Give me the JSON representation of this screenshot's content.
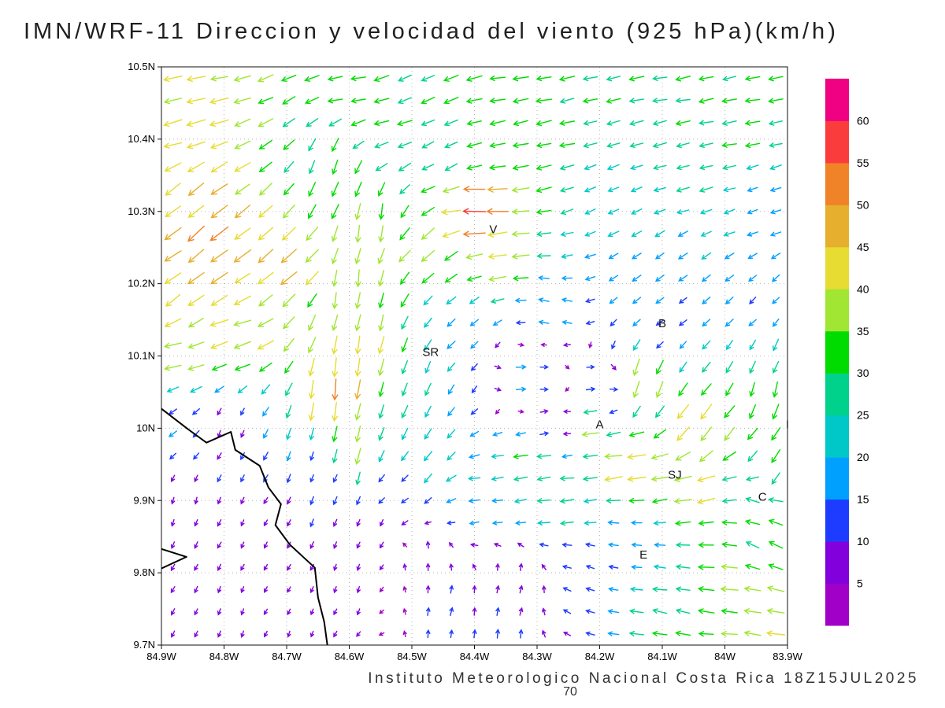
{
  "title": "IMN/WRF-11 Direccion y velocidad del viento (925 hPa)(km/h)",
  "footer": {
    "credit": "Instituto Meteorologico Nacional Costa Rica 18Z15JUL2025",
    "frame_number": "70"
  },
  "chart_data": {
    "type": "vector-field-map",
    "title": "IMN/WRF-11 Direccion y velocidad del viento (925 hPa)(km/h)",
    "pressure_level": "925 hPa",
    "units": "km/h",
    "x_ticks": [
      "84.9W",
      "84.8W",
      "84.7W",
      "84.6W",
      "84.5W",
      "84.4W",
      "84.3W",
      "84.2W",
      "84.1W",
      "84W",
      "83.9W"
    ],
    "y_ticks": [
      "10.5N",
      "10.4N",
      "10.3N",
      "10.2N",
      "10.1N",
      "10N",
      "9.9N",
      "9.8N",
      "9.7N"
    ],
    "lon_range_w": [
      84.9,
      83.9
    ],
    "lat_range": [
      9.7,
      10.5
    ],
    "grid_step_deg": 0.1,
    "grid_style": "dotted",
    "arrow_grid": {
      "cols": 27,
      "rows": 26
    },
    "colorbar": {
      "levels": [
        5,
        10,
        15,
        20,
        25,
        30,
        35,
        40,
        45,
        50,
        55,
        60
      ],
      "colors": [
        "#A000C8",
        "#8200DC",
        "#1E3CFF",
        "#00A0FF",
        "#00C8C8",
        "#00D28C",
        "#00DC00",
        "#A0E632",
        "#E6DC32",
        "#E6AF2D",
        "#F08228",
        "#FA3C3C",
        "#F00082"
      ],
      "position": "right"
    },
    "station_labels": [
      {
        "text": "V",
        "lon_w": 84.37,
        "lat": 10.27
      },
      {
        "text": "B",
        "lon_w": 84.1,
        "lat": 10.14
      },
      {
        "text": "SR",
        "lon_w": 84.47,
        "lat": 10.1
      },
      {
        "text": "A",
        "lon_w": 84.2,
        "lat": 10.0
      },
      {
        "text": "SJ",
        "lon_w": 84.08,
        "lat": 9.93
      },
      {
        "text": "C",
        "lon_w": 83.94,
        "lat": 9.9
      },
      {
        "text": "E",
        "lon_w": 84.13,
        "lat": 9.82
      },
      {
        "text": "I",
        "lon_w": 83.9,
        "lat": 10.0
      }
    ],
    "coastline_main": [
      [
        84.9,
        10.027
      ],
      [
        84.858,
        9.999
      ],
      [
        84.828,
        9.98
      ],
      [
        84.789,
        9.995
      ],
      [
        84.782,
        9.97
      ],
      [
        84.743,
        9.948
      ],
      [
        84.729,
        9.918
      ],
      [
        84.709,
        9.895
      ],
      [
        84.718,
        9.866
      ],
      [
        84.695,
        9.839
      ],
      [
        84.655,
        9.807
      ],
      [
        84.65,
        9.766
      ],
      [
        84.64,
        9.732
      ],
      [
        84.635,
        9.7
      ]
    ],
    "coastline_peninsula": [
      [
        84.9,
        9.833
      ],
      [
        84.86,
        9.822
      ],
      [
        84.9,
        9.806
      ]
    ],
    "wind_control_points": [
      [
        84.85,
        10.47,
        -40,
        -8
      ],
      [
        84.6,
        10.47,
        -32,
        -6
      ],
      [
        84.35,
        10.47,
        -34,
        -6
      ],
      [
        84.1,
        10.47,
        -30,
        -5
      ],
      [
        83.92,
        10.47,
        -29,
        -5
      ],
      [
        84.85,
        10.41,
        -43,
        -10
      ],
      [
        84.55,
        10.41,
        -30,
        -9
      ],
      [
        84.3,
        10.4,
        -32,
        -6
      ],
      [
        84.0,
        10.4,
        -31,
        -5
      ],
      [
        84.45,
        10.37,
        -24,
        -12
      ],
      [
        84.85,
        10.33,
        -36,
        -26
      ],
      [
        84.82,
        10.26,
        -40,
        -33
      ],
      [
        84.86,
        10.2,
        -36,
        -26
      ],
      [
        84.78,
        10.13,
        -40,
        -14
      ],
      [
        84.7,
        10.22,
        -34,
        -30
      ],
      [
        84.87,
        10.09,
        -36,
        -8
      ],
      [
        84.87,
        10.02,
        -12,
        -9
      ],
      [
        84.62,
        10.36,
        -10,
        -30
      ],
      [
        84.56,
        10.28,
        -6,
        -37
      ],
      [
        84.6,
        10.19,
        -4,
        -36
      ],
      [
        84.57,
        10.11,
        -8,
        -42
      ],
      [
        84.62,
        10.05,
        -6,
        -48
      ],
      [
        84.6,
        9.97,
        -8,
        -38
      ],
      [
        84.4,
        10.3,
        -56,
        -2
      ],
      [
        84.47,
        10.25,
        -28,
        -22
      ],
      [
        84.36,
        10.24,
        -40,
        -4
      ],
      [
        84.5,
        10.05,
        -10,
        -24
      ],
      [
        84.47,
        9.95,
        -14,
        -20
      ],
      [
        84.42,
        10.14,
        -14,
        -12
      ],
      [
        84.28,
        10.17,
        -18,
        4
      ],
      [
        84.32,
        10.07,
        17,
        1
      ],
      [
        84.2,
        10.06,
        15,
        2
      ],
      [
        84.28,
        10.0,
        14,
        3
      ],
      [
        84.18,
        10.31,
        -20,
        -8
      ],
      [
        83.95,
        10.31,
        -18,
        -6
      ],
      [
        84.05,
        10.37,
        -26,
        -6
      ],
      [
        84.12,
        10.21,
        -14,
        -11
      ],
      [
        83.94,
        10.16,
        -11,
        -10
      ],
      [
        84.1,
        10.14,
        -10,
        -8
      ],
      [
        84.13,
        10.07,
        -14,
        -38
      ],
      [
        84.04,
        10.0,
        -24,
        -34
      ],
      [
        83.92,
        10.05,
        -10,
        -34
      ],
      [
        83.92,
        9.95,
        -18,
        -28
      ],
      [
        83.91,
        10.1,
        -9,
        -22
      ],
      [
        84.22,
        10.0,
        -37,
        -3
      ],
      [
        84.31,
        9.96,
        -33,
        -5
      ],
      [
        84.15,
        9.95,
        -42,
        -5
      ],
      [
        84.05,
        9.92,
        -39,
        -8
      ],
      [
        84.26,
        9.91,
        -29,
        -3
      ],
      [
        84.4,
        9.92,
        -21,
        -2
      ],
      [
        84.52,
        9.9,
        -10,
        -6
      ],
      [
        83.94,
        9.9,
        -29,
        9
      ],
      [
        83.93,
        9.84,
        -27,
        14
      ],
      [
        84.15,
        9.84,
        -16,
        2
      ],
      [
        84.22,
        9.8,
        -12,
        4
      ],
      [
        84.0,
        9.78,
        -37,
        4
      ],
      [
        83.92,
        9.74,
        -39,
        6
      ],
      [
        84.1,
        9.74,
        -29,
        5
      ],
      [
        84.45,
        9.75,
        2,
        11
      ],
      [
        84.33,
        9.78,
        3,
        9
      ],
      [
        84.36,
        9.71,
        2,
        13
      ],
      [
        84.48,
        9.82,
        0,
        8
      ],
      [
        84.6,
        9.79,
        -2,
        -6
      ],
      [
        84.72,
        9.76,
        -3,
        -5
      ],
      [
        84.8,
        10.0,
        -3,
        -8
      ],
      [
        84.86,
        9.9,
        -2,
        -7
      ],
      [
        84.74,
        9.86,
        -3,
        -6
      ],
      [
        84.64,
        9.94,
        -4,
        -9
      ],
      [
        84.56,
        9.86,
        -3,
        -7
      ],
      [
        84.78,
        9.73,
        -2,
        -6
      ],
      [
        84.68,
        9.71,
        -2,
        -5
      ]
    ]
  }
}
